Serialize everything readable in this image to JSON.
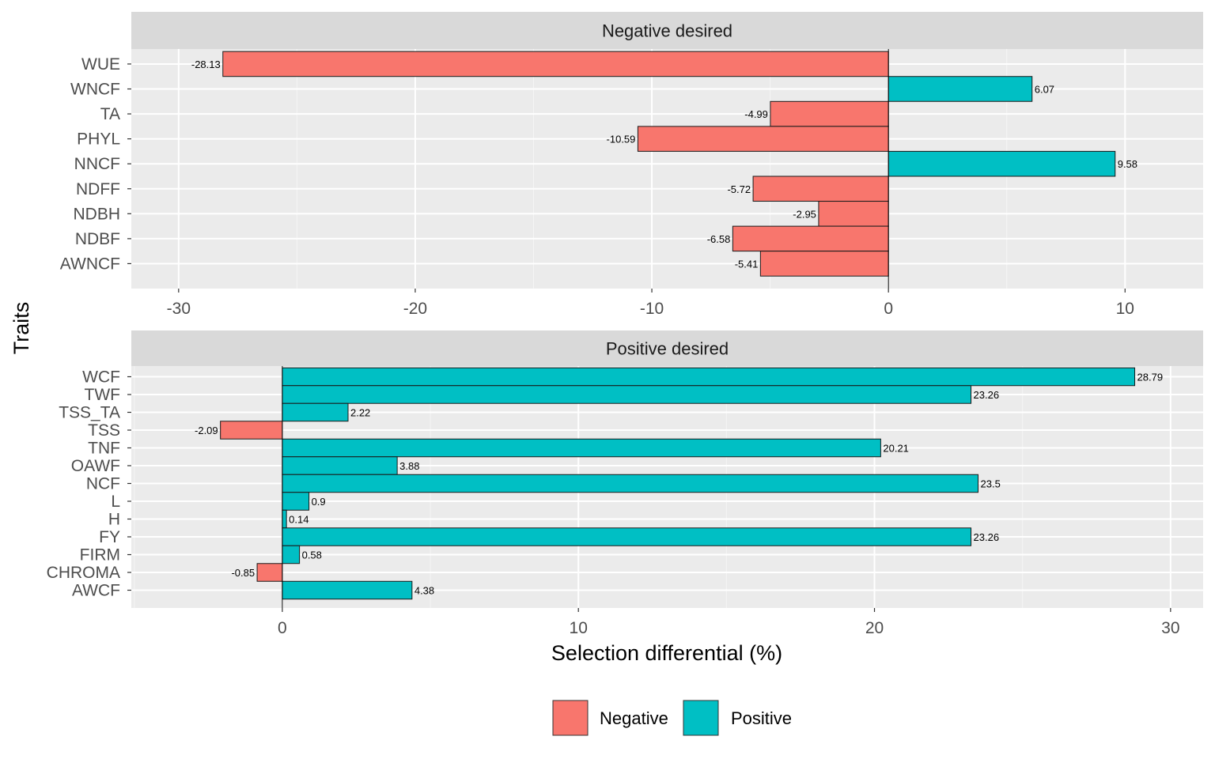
{
  "chart_data": {
    "type": "bar",
    "orientation": "horizontal",
    "xlabel": "Selection differential (%)",
    "ylabel": "Traits",
    "colors": {
      "Negative": "#F8766D",
      "Positive": "#00BFC4"
    },
    "legend": {
      "placement": "bottom",
      "entries": [
        {
          "name": "Negative",
          "color": "#F8766D"
        },
        {
          "name": "Positive",
          "color": "#00BFC4"
        }
      ]
    },
    "grid": true,
    "panels": [
      {
        "title": "Negative desired",
        "xlim": [
          -32,
          13.3
        ],
        "xticks": [
          -30,
          -20,
          -10,
          0,
          10
        ],
        "xtick_labels": [
          "-30",
          "-20",
          "-10",
          "0",
          "10"
        ],
        "categories": [
          "WUE",
          "WNCF",
          "TA",
          "PHYL",
          "NNCF",
          "NDFF",
          "NDBH",
          "NDBF",
          "AWNCF"
        ],
        "values": [
          -28.13,
          6.07,
          -4.99,
          -10.59,
          9.58,
          -5.72,
          -2.95,
          -6.58,
          -5.41
        ],
        "labels": [
          "-28.13",
          "6.07",
          "-4.99",
          "-10.59",
          "9.58",
          "-5.72",
          "-2.95",
          "-6.58",
          "-5.41"
        ]
      },
      {
        "title": "Positive desired",
        "xlim": [
          -5.1,
          31.1
        ],
        "xticks": [
          0,
          10,
          20,
          30
        ],
        "xtick_labels": [
          "0",
          "10",
          "20",
          "30"
        ],
        "categories": [
          "WCF",
          "TWF",
          "TSS_TA",
          "TSS",
          "TNF",
          "OAWF",
          "NCF",
          "L",
          "H",
          "FY",
          "FIRM",
          "CHROMA",
          "AWCF"
        ],
        "values": [
          28.79,
          23.26,
          2.22,
          -2.09,
          20.21,
          3.88,
          23.5,
          0.9,
          0.14,
          23.26,
          0.58,
          -0.85,
          4.38
        ],
        "labels": [
          "28.79",
          "23.26",
          "2.22",
          "-2.09",
          "20.21",
          "3.88",
          "23.5",
          "0.9",
          "0.14",
          "23.26",
          "0.58",
          "-0.85",
          "4.38"
        ]
      }
    ]
  }
}
